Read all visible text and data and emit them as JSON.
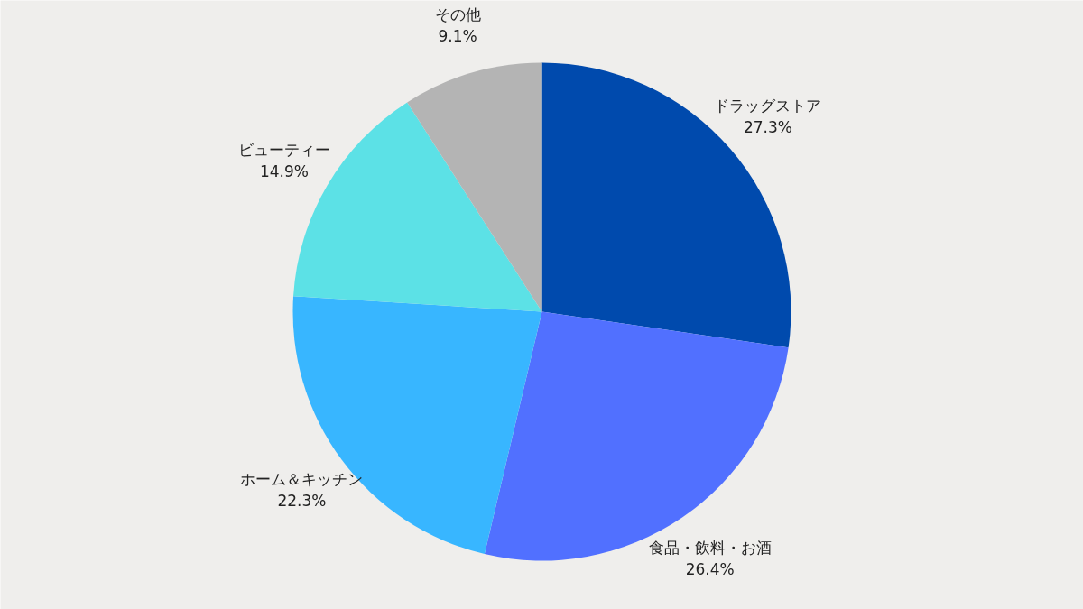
{
  "chart_data": {
    "type": "pie",
    "categories": [
      "ドラッグストア",
      "食品・飲料・お酒",
      "ホーム＆キッチン",
      "ビューティー",
      "その他"
    ],
    "values": [
      27.3,
      26.4,
      22.3,
      14.9,
      9.1
    ],
    "colors": [
      "#004aad",
      "#5170ff",
      "#38b6ff",
      "#5ce1e6",
      "#b4b4b4"
    ],
    "value_labels": [
      "27.3%",
      "26.4%",
      "22.3%",
      "14.9%",
      "9.1%"
    ]
  }
}
